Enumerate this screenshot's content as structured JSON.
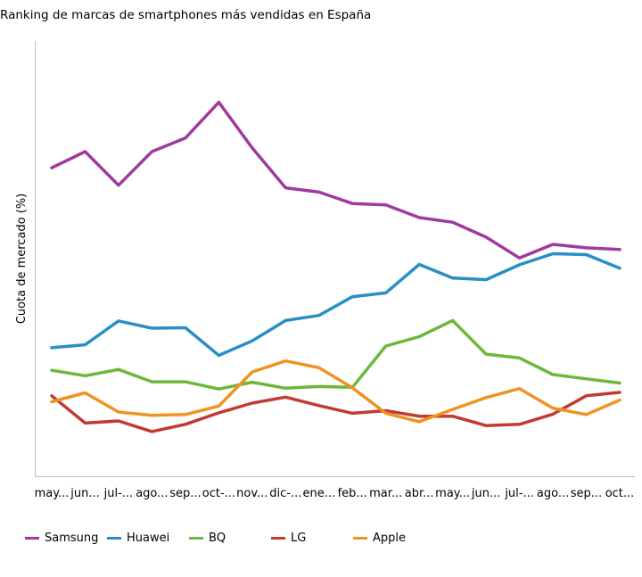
{
  "chart_data": {
    "type": "line",
    "title": "Ranking de marcas de smartphones más vendidas en España",
    "xlabel": "",
    "ylabel": "Cuota de mercado (%)",
    "categories": [
      "may...",
      "jun...",
      "jul-...",
      "ago...",
      "sep...",
      "oct-...",
      "nov...",
      "dic-...",
      "ene...",
      "feb...",
      "mar...",
      "abr...",
      "may...",
      "jun...",
      "jul-...",
      "ago...",
      "sep...",
      "oct..."
    ],
    "ylim": [
      0,
      100
    ],
    "grid": false,
    "legend_position": "bottom",
    "series": [
      {
        "name": "Samsung",
        "color": "#a03a9e",
        "values": [
          72.5,
          76.3,
          68.4,
          76.3,
          79.5,
          87.9,
          77.2,
          67.8,
          66.8,
          64.1,
          63.8,
          60.8,
          59.7,
          56.2,
          51.3,
          54.5,
          53.7,
          53.3
        ]
      },
      {
        "name": "Huawei",
        "color": "#2a8fc5",
        "values": [
          30.2,
          30.9,
          36.5,
          34.8,
          34.9,
          28.4,
          31.8,
          36.6,
          37.8,
          42.2,
          43.1,
          49.8,
          46.6,
          46.2,
          49.7,
          52.3,
          52.1,
          48.9
        ]
      },
      {
        "name": "BQ",
        "color": "#6db83b",
        "values": [
          24.9,
          23.6,
          25.1,
          22.2,
          22.2,
          20.5,
          22.1,
          20.7,
          21.1,
          20.9,
          30.6,
          32.8,
          36.6,
          28.7,
          27.8,
          23.9,
          22.9,
          21.9
        ]
      },
      {
        "name": "LG",
        "color": "#c23a31",
        "values": [
          18.9,
          12.5,
          13.0,
          10.5,
          12.2,
          14.9,
          17.2,
          18.6,
          16.6,
          14.8,
          15.4,
          14.1,
          14.1,
          11.9,
          12.2,
          14.6,
          18.9,
          19.7
        ]
      },
      {
        "name": "Apple",
        "color": "#ef9322",
        "values": [
          17.5,
          19.6,
          15.1,
          14.3,
          14.5,
          16.5,
          24.5,
          27.1,
          25.5,
          20.8,
          14.8,
          12.8,
          15.7,
          18.5,
          20.6,
          16.0,
          14.5,
          17.9
        ]
      }
    ]
  }
}
